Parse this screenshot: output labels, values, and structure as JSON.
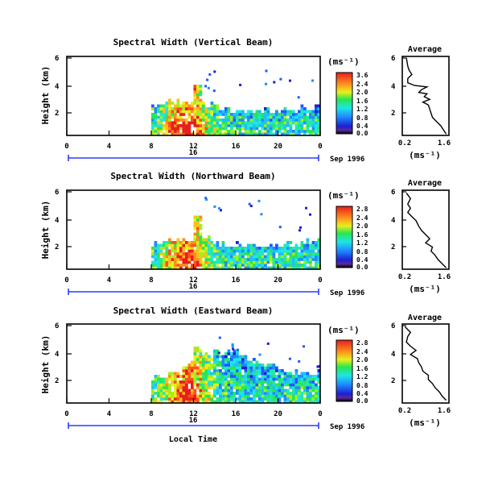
{
  "chart_data": [
    {
      "type": "heatmap",
      "title": "Spectral Width (Vertical Beam)",
      "ylabel": "Height (km)",
      "xticks": [
        "0",
        "4",
        "8",
        "12",
        "16",
        "20",
        "0"
      ],
      "yticks": [
        "2",
        "4",
        "6"
      ],
      "xlim": [
        0,
        24
      ],
      "ylim": [
        0.5,
        6.2
      ],
      "date_label": "16",
      "date_suffix": "Sep 1996",
      "colorbar": {
        "unit": "(ms⁻¹)",
        "ticks": [
          "3.6",
          "2.4",
          "2.0",
          "1.6",
          "1.2",
          "0.8",
          "0.4",
          "0.0"
        ]
      },
      "echo": {
        "start_hour": 8,
        "end_hour": 24,
        "top_profile": [
          [
            8,
            2.7
          ],
          [
            10,
            3.0
          ],
          [
            11,
            3.1
          ],
          [
            12,
            3.0
          ],
          [
            13,
            2.9
          ],
          [
            15,
            2.6
          ],
          [
            18,
            2.4
          ],
          [
            21,
            2.5
          ],
          [
            24,
            2.7
          ]
        ],
        "spike_hour": 12.2,
        "spike_top": 4.3
      },
      "average": {
        "title": "Average",
        "xlabel": "(ms⁻¹)",
        "xticks": [
          "0.2",
          "1.6"
        ],
        "yticks": [
          "2",
          "4",
          "6"
        ],
        "xlim": [
          0.2,
          1.6
        ],
        "profile": [
          [
            0.15,
            6.1
          ],
          [
            0.2,
            5.5
          ],
          [
            0.25,
            5.2
          ],
          [
            0.35,
            4.9
          ],
          [
            0.2,
            4.6
          ],
          [
            0.2,
            4.3
          ],
          [
            0.45,
            4.1
          ],
          [
            0.9,
            4.0
          ],
          [
            0.7,
            3.8
          ],
          [
            0.6,
            3.6
          ],
          [
            0.9,
            3.5
          ],
          [
            0.8,
            3.3
          ],
          [
            1.0,
            3.1
          ],
          [
            0.75,
            2.9
          ],
          [
            0.95,
            2.7
          ],
          [
            1.0,
            2.4
          ],
          [
            1.05,
            2.1
          ],
          [
            1.1,
            1.8
          ],
          [
            1.25,
            1.5
          ],
          [
            1.4,
            1.2
          ],
          [
            1.5,
            0.9
          ],
          [
            1.6,
            0.6
          ]
        ]
      }
    },
    {
      "type": "heatmap",
      "title": "Spectral Width (Northward Beam)",
      "ylabel": "Height (km)",
      "xticks": [
        "0",
        "4",
        "8",
        "12",
        "16",
        "20",
        "0"
      ],
      "yticks": [
        "2",
        "4",
        "6"
      ],
      "xlim": [
        0,
        24
      ],
      "ylim": [
        0.5,
        6.2
      ],
      "date_label": "16",
      "date_suffix": "Sep 1996",
      "colorbar": {
        "unit": "(ms⁻¹)",
        "ticks": [
          "2.8",
          "2.4",
          "2.0",
          "1.6",
          "1.2",
          "0.8",
          "0.4",
          "0.0"
        ]
      },
      "echo": {
        "start_hour": 8,
        "end_hour": 24,
        "top_profile": [
          [
            8,
            2.4
          ],
          [
            10,
            2.7
          ],
          [
            11,
            2.8
          ],
          [
            12,
            3.0
          ],
          [
            14,
            2.6
          ],
          [
            16,
            2.3
          ],
          [
            18,
            2.2
          ],
          [
            21,
            2.5
          ],
          [
            24,
            2.6
          ]
        ],
        "spike_hour": 12.2,
        "spike_top": 4.4
      },
      "average": {
        "title": "Average",
        "xlabel": "(ms⁻¹)",
        "xticks": [
          "0.2",
          "1.6"
        ],
        "yticks": [
          "2",
          "4",
          "6"
        ],
        "xlim": [
          0.2,
          1.6
        ],
        "profile": [
          [
            0.15,
            6.0
          ],
          [
            0.3,
            5.6
          ],
          [
            0.2,
            5.2
          ],
          [
            0.3,
            4.9
          ],
          [
            0.2,
            4.6
          ],
          [
            0.35,
            4.3
          ],
          [
            0.5,
            4.0
          ],
          [
            0.6,
            3.6
          ],
          [
            0.7,
            3.3
          ],
          [
            0.85,
            3.0
          ],
          [
            1.0,
            2.7
          ],
          [
            0.85,
            2.4
          ],
          [
            1.1,
            2.1
          ],
          [
            1.05,
            1.8
          ],
          [
            1.2,
            1.5
          ],
          [
            1.3,
            1.2
          ],
          [
            1.45,
            0.9
          ],
          [
            1.6,
            0.6
          ]
        ]
      }
    },
    {
      "type": "heatmap",
      "title": "Spectral Width (Eastward Beam)",
      "ylabel": "Height (km)",
      "xticks": [
        "0",
        "4",
        "8",
        "12",
        "16",
        "20",
        "0"
      ],
      "yticks": [
        "2",
        "4",
        "6"
      ],
      "xlim": [
        0,
        24
      ],
      "ylim": [
        0.5,
        6.2
      ],
      "date_label": "16",
      "date_suffix": "Sep 1996",
      "xlabel": "Local Time",
      "colorbar": {
        "unit": "(ms⁻¹)",
        "ticks": [
          "2.8",
          "2.4",
          "2.0",
          "1.6",
          "1.2",
          "0.8",
          "0.4",
          "0.0"
        ]
      },
      "echo": {
        "start_hour": 8,
        "end_hour": 24,
        "top_profile": [
          [
            8,
            2.4
          ],
          [
            10,
            2.8
          ],
          [
            11,
            3.2
          ],
          [
            12,
            3.6
          ],
          [
            13,
            3.9
          ],
          [
            14,
            4.2
          ],
          [
            16,
            4.3
          ],
          [
            18,
            3.6
          ],
          [
            20,
            3.0
          ],
          [
            22,
            2.8
          ],
          [
            24,
            2.8
          ]
        ],
        "spike_hour": 12.2,
        "spike_top": 4.6
      },
      "average": {
        "title": "Average",
        "xlabel": "(ms⁻¹)",
        "xticks": [
          "0.2",
          "1.6"
        ],
        "yticks": [
          "2",
          "4",
          "6"
        ],
        "xlim": [
          0.2,
          1.6
        ],
        "profile": [
          [
            0.1,
            6.0
          ],
          [
            0.3,
            5.6
          ],
          [
            0.2,
            5.3
          ],
          [
            0.15,
            4.9
          ],
          [
            0.3,
            4.6
          ],
          [
            0.5,
            4.3
          ],
          [
            0.3,
            4.0
          ],
          [
            0.55,
            3.7
          ],
          [
            0.6,
            3.4
          ],
          [
            0.7,
            3.1
          ],
          [
            0.75,
            2.8
          ],
          [
            0.95,
            2.5
          ],
          [
            0.95,
            2.2
          ],
          [
            1.1,
            1.9
          ],
          [
            1.2,
            1.6
          ],
          [
            1.35,
            1.3
          ],
          [
            1.45,
            1.0
          ],
          [
            1.6,
            0.7
          ]
        ]
      }
    }
  ]
}
